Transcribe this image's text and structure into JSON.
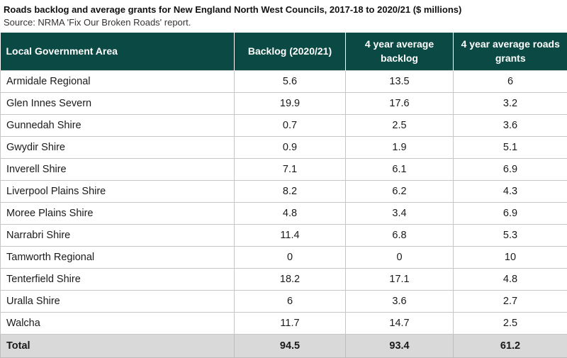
{
  "title": "Roads backlog and average grants for New England North West Councils, 2017-18 to 2020/21 ($ millions)",
  "source": "Source: NRMA 'Fix Our Broken Roads' report.",
  "columns": [
    "Local Government Area",
    "Backlog (2020/21)",
    "4 year average backlog",
    "4 year average roads grants"
  ],
  "rows": [
    [
      "Armidale Regional",
      "5.6",
      "13.5",
      "6"
    ],
    [
      "Glen Innes Severn",
      "19.9",
      "17.6",
      "3.2"
    ],
    [
      "Gunnedah Shire",
      "0.7",
      "2.5",
      "3.6"
    ],
    [
      "Gwydir Shire",
      "0.9",
      "1.9",
      "5.1"
    ],
    [
      "Inverell Shire",
      "7.1",
      "6.1",
      "6.9"
    ],
    [
      "Liverpool Plains Shire",
      "8.2",
      "6.2",
      "4.3"
    ],
    [
      "Moree Plains Shire",
      "4.8",
      "3.4",
      "6.9"
    ],
    [
      "Narrabri Shire",
      "11.4",
      "6.8",
      "5.3"
    ],
    [
      "Tamworth Regional",
      "0",
      "0",
      "10"
    ],
    [
      "Tenterfield Shire",
      "18.2",
      "17.1",
      "4.8"
    ],
    [
      "Uralla Shire",
      "6",
      "3.6",
      "2.7"
    ],
    [
      "Walcha",
      "11.7",
      "14.7",
      "2.5"
    ]
  ],
  "total": [
    "Total",
    "94.5",
    "93.4",
    "61.2"
  ],
  "colors": {
    "header_bg": "#0b4a44",
    "total_bg": "#d9d9d9"
  }
}
